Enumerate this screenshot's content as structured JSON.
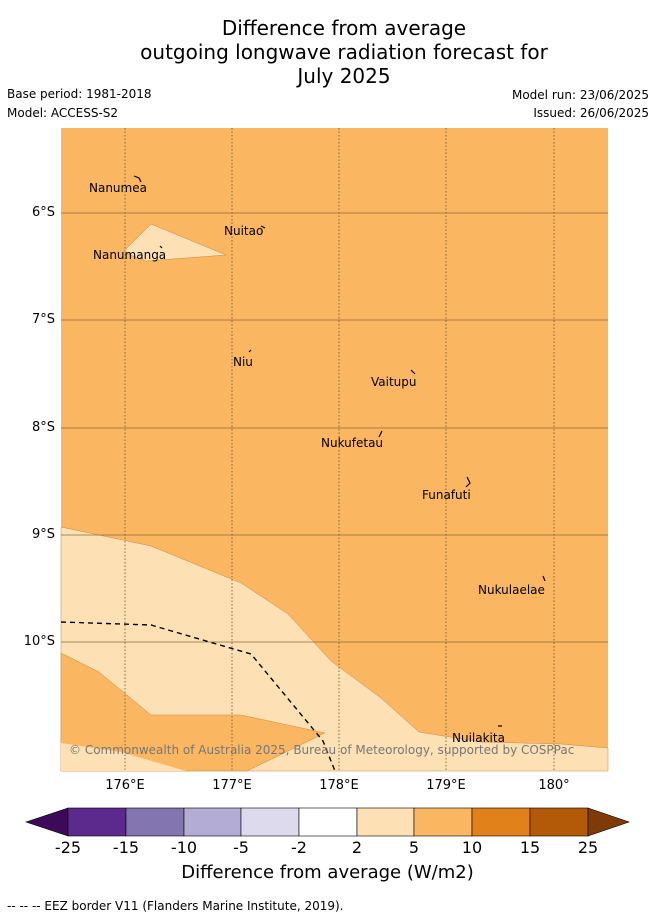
{
  "title": {
    "line1": "Difference from average",
    "line2": "outgoing longwave radiation forecast for",
    "line3": "July 2025"
  },
  "meta": {
    "base_period": "Base period: 1981-2018",
    "model": "Model: ACCESS-S2",
    "model_run": "Model run: 23/06/2025",
    "issued": "Issued: 26/06/2025"
  },
  "map": {
    "lat_labels": [
      "6°S",
      "7°S",
      "8°S",
      "9°S",
      "10°S"
    ],
    "lon_labels": [
      "176°E",
      "177°E",
      "178°E",
      "179°E",
      "180°"
    ],
    "places": [
      "Nanumea",
      "Nuitao",
      "Nanumanga",
      "Niu",
      "Vaitupu",
      "Nukufetau",
      "Funafuti",
      "Nukulaelae",
      "Nuilakita"
    ],
    "copyright": "© Commonwealth of Australia 2025, Bureau of Meteorology, supported by COSPPac"
  },
  "colorbar": {
    "ticks": [
      "-25",
      "-15",
      "-10",
      "-5",
      "-2",
      "2",
      "5",
      "10",
      "15",
      "25"
    ],
    "colors": [
      "#3d0a5a",
      "#5b2a8c",
      "#8375af",
      "#b3acd4",
      "#dcdaec",
      "#ffffff",
      "#fde0b4",
      "#fbb661",
      "#e1811a",
      "#b35a08",
      "#7f3b07"
    ],
    "label": "Difference from average (W/m2)"
  },
  "footnote": "--  --  -- EEZ border V11 (Flanders Marine Institute, 2019)."
}
